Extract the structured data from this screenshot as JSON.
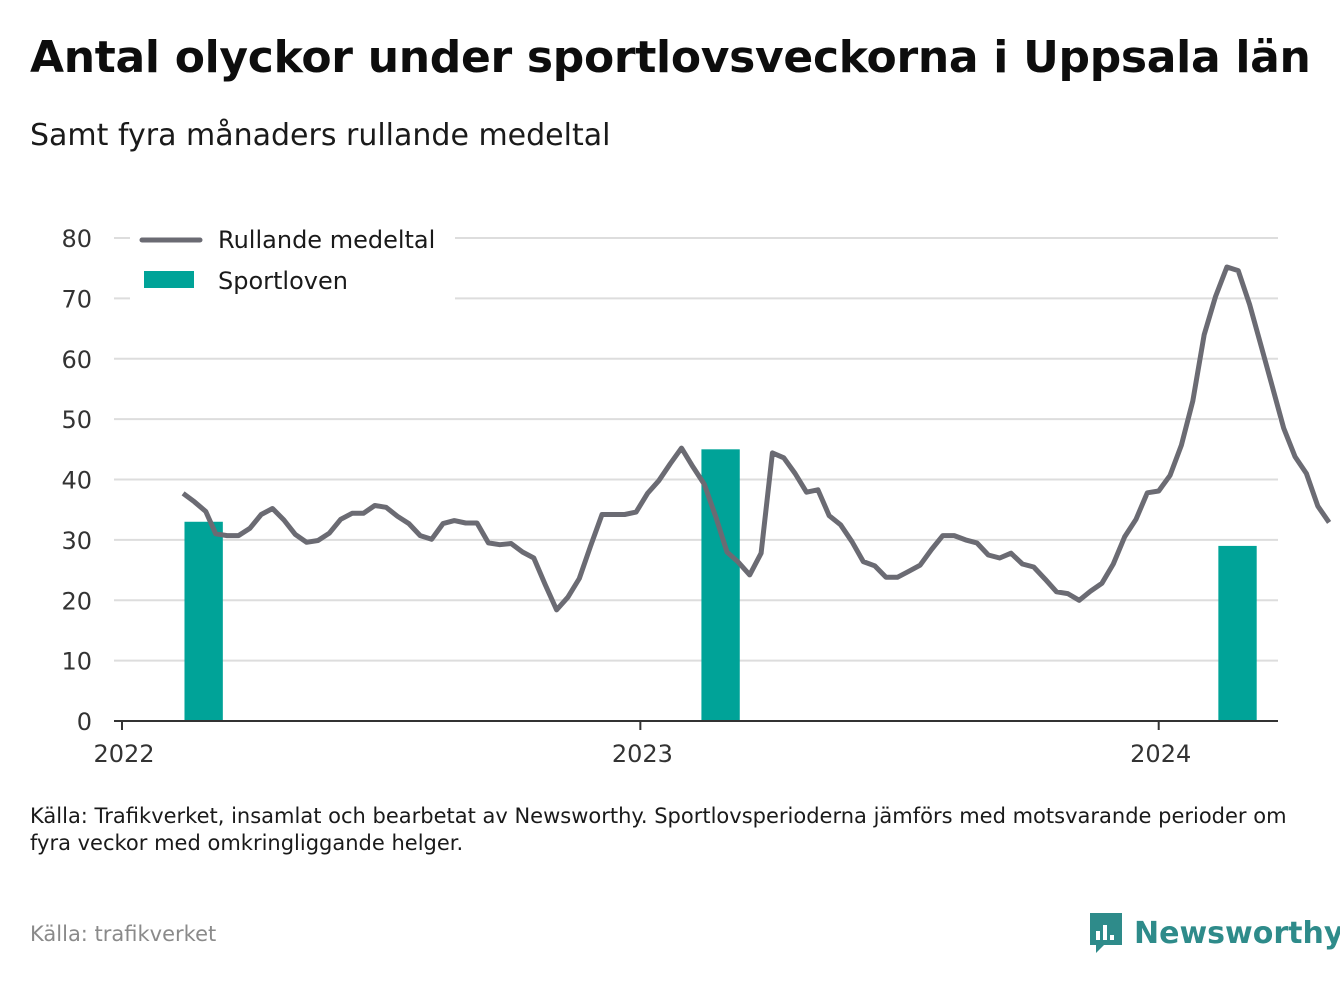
{
  "title": "Antal olyckor under sportlovsveckorna i Uppsala län",
  "subtitle": "Samt fyra månaders rullande medeltal",
  "note": "Källa: Trafikverket, insamlat och bearbetat av Newsworthy. Sportlovsperioderna jämförs med motsvarande perioder om fyra veckor med omkringliggande helger.",
  "source": "Källa: trafikverket",
  "brand": {
    "name": "Newsworthy",
    "icon": "newsworthy-logo-icon",
    "color": "#2e8b8a"
  },
  "colors": {
    "line": "#6b6b73",
    "bars": "#00a398",
    "grid": "#dddddd",
    "axis": "#333333"
  },
  "chart_data": {
    "type": "bar",
    "xlim": [
      "2022-01-01",
      "2024-03-25"
    ],
    "ylim": [
      0,
      80
    ],
    "yticks": [
      0,
      10,
      20,
      30,
      40,
      50,
      60,
      70,
      80
    ],
    "xticks": [
      {
        "label": "2022",
        "date": "2022-01-01"
      },
      {
        "label": "2023",
        "date": "2023-01-01"
      },
      {
        "label": "2024",
        "date": "2024-01-01"
      }
    ],
    "grid": true,
    "legend": {
      "position": "top-left",
      "entries": [
        "Rullande medeltal",
        "Sportloven"
      ]
    },
    "series": [
      {
        "name": "Sportloven",
        "type": "bar",
        "color": "#00a398",
        "points": [
          {
            "start": "2022-02-14",
            "end": "2022-03-13",
            "value": 33
          },
          {
            "start": "2023-02-13",
            "end": "2023-03-12",
            "value": 45
          },
          {
            "start": "2024-02-12",
            "end": "2024-03-10",
            "value": 29
          }
        ]
      },
      {
        "name": "Rullande medeltal",
        "type": "line",
        "color": "#6b6b73",
        "points": [
          [
            "2022-02-13",
            37.7
          ],
          [
            "2022-02-21",
            36.3
          ],
          [
            "2022-02-29",
            34.7
          ],
          [
            "2022-03-08",
            31.0
          ],
          [
            "2022-03-16",
            30.7
          ],
          [
            "2022-03-24",
            30.7
          ],
          [
            "2022-04-01",
            31.9
          ],
          [
            "2022-04-09",
            34.2
          ],
          [
            "2022-04-17",
            35.2
          ],
          [
            "2022-04-25",
            33.3
          ],
          [
            "2022-05-03",
            30.9
          ],
          [
            "2022-05-11",
            29.6
          ],
          [
            "2022-05-19",
            29.9
          ],
          [
            "2022-05-27",
            31.1
          ],
          [
            "2022-06-04",
            33.4
          ],
          [
            "2022-06-12",
            34.4
          ],
          [
            "2022-06-20",
            34.4
          ],
          [
            "2022-06-28",
            35.7
          ],
          [
            "2022-07-06",
            35.4
          ],
          [
            "2022-07-14",
            33.9
          ],
          [
            "2022-07-22",
            32.7
          ],
          [
            "2022-07-30",
            30.7
          ],
          [
            "2022-08-07",
            30.1
          ],
          [
            "2022-08-15",
            32.7
          ],
          [
            "2022-08-23",
            33.2
          ],
          [
            "2022-08-31",
            32.8
          ],
          [
            "2022-09-08",
            32.8
          ],
          [
            "2022-09-16",
            29.5
          ],
          [
            "2022-09-24",
            29.2
          ],
          [
            "2022-10-02",
            29.4
          ],
          [
            "2022-10-10",
            28.0
          ],
          [
            "2022-10-18",
            27.0
          ],
          [
            "2022-10-26",
            22.6
          ],
          [
            "2022-11-03",
            18.4
          ],
          [
            "2022-11-11",
            20.5
          ],
          [
            "2022-11-19",
            23.6
          ],
          [
            "2022-11-27",
            29.0
          ],
          [
            "2022-12-05",
            34.2
          ],
          [
            "2022-12-13",
            34.2
          ],
          [
            "2022-12-21",
            34.2
          ],
          [
            "2022-12-29",
            34.6
          ],
          [
            "2023-01-06",
            37.7
          ],
          [
            "2023-01-14",
            39.8
          ],
          [
            "2023-01-22",
            42.6
          ],
          [
            "2023-01-30",
            45.2
          ],
          [
            "2023-02-07",
            42.1
          ],
          [
            "2023-02-15",
            39.2
          ],
          [
            "2023-02-23",
            33.9
          ],
          [
            "2023-03-03",
            28.0
          ],
          [
            "2023-03-11",
            26.3
          ],
          [
            "2023-03-19",
            24.2
          ],
          [
            "2023-03-27",
            27.8
          ],
          [
            "2023-04-04",
            44.4
          ],
          [
            "2023-04-12",
            43.6
          ],
          [
            "2023-04-20",
            41.0
          ],
          [
            "2023-04-28",
            37.9
          ],
          [
            "2023-05-06",
            38.3
          ],
          [
            "2023-05-14",
            34.0
          ],
          [
            "2023-05-22",
            32.5
          ],
          [
            "2023-05-30",
            29.7
          ],
          [
            "2023-06-07",
            26.4
          ],
          [
            "2023-06-15",
            25.7
          ],
          [
            "2023-06-23",
            23.8
          ],
          [
            "2023-07-01",
            23.8
          ],
          [
            "2023-07-09",
            24.8
          ],
          [
            "2023-07-17",
            25.8
          ],
          [
            "2023-07-25",
            28.4
          ],
          [
            "2023-08-02",
            30.7
          ],
          [
            "2023-08-10",
            30.7
          ],
          [
            "2023-08-18",
            30.0
          ],
          [
            "2023-08-26",
            29.5
          ],
          [
            "2023-09-03",
            27.5
          ],
          [
            "2023-09-11",
            27.0
          ],
          [
            "2023-09-19",
            27.8
          ],
          [
            "2023-09-27",
            26.0
          ],
          [
            "2023-10-05",
            25.5
          ],
          [
            "2023-10-13",
            23.5
          ],
          [
            "2023-10-21",
            21.4
          ],
          [
            "2023-10-29",
            21.1
          ],
          [
            "2023-11-06",
            20.0
          ],
          [
            "2023-11-14",
            21.5
          ],
          [
            "2023-11-22",
            22.8
          ],
          [
            "2023-11-30",
            26.0
          ],
          [
            "2023-12-08",
            30.5
          ],
          [
            "2023-12-16",
            33.4
          ],
          [
            "2023-12-24",
            37.8
          ],
          [
            "2024-01-01",
            38.1
          ],
          [
            "2024-01-09",
            40.7
          ],
          [
            "2024-01-17",
            45.7
          ],
          [
            "2024-01-25",
            53.0
          ],
          [
            "2024-02-02",
            64.0
          ],
          [
            "2024-02-10",
            70.3
          ],
          [
            "2024-02-18",
            75.2
          ],
          [
            "2024-02-26",
            74.6
          ],
          [
            "2024-03-05",
            69.0
          ],
          [
            "2024-03-13",
            62.2
          ],
          [
            "2024-03-21",
            55.4
          ],
          [
            "2024-03-29",
            48.5
          ],
          [
            "2024-04-06",
            43.8
          ],
          [
            "2024-04-14",
            41.0
          ],
          [
            "2024-04-22",
            35.6
          ],
          [
            "2024-04-30",
            32.9
          ]
        ]
      }
    ]
  }
}
